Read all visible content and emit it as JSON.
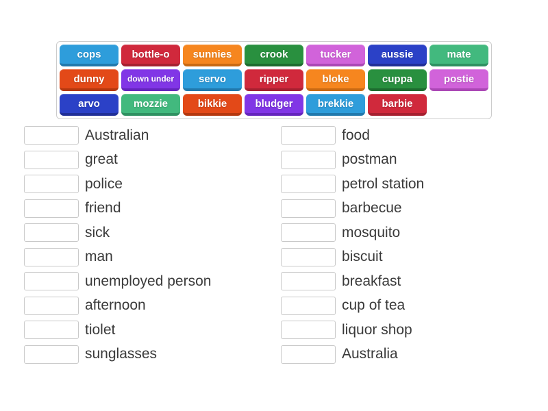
{
  "activity": {
    "type": "match-up",
    "theme": "Australian slang"
  },
  "palette": {
    "blue": {
      "fill": "#2e9ddb",
      "edge": "#2179ad"
    },
    "red": {
      "fill": "#d0293c",
      "edge": "#a62030"
    },
    "orange": {
      "fill": "#f6861f",
      "edge": "#c96a13"
    },
    "green": {
      "fill": "#29903f",
      "edge": "#1d6c2f"
    },
    "orchid": {
      "fill": "#d163da",
      "edge": "#ab47b5"
    },
    "royalblue": {
      "fill": "#2b41c7",
      "edge": "#202f97"
    },
    "seagreen": {
      "fill": "#42b97e",
      "edge": "#2f9161"
    },
    "orangered": {
      "fill": "#e34918",
      "edge": "#b5380f"
    },
    "purple": {
      "fill": "#8136e6",
      "edge": "#6525bd"
    }
  },
  "tray": {
    "rows": [
      {
        "tiles": [
          {
            "label": "cops",
            "color": "blue"
          },
          {
            "label": "bottle-o",
            "color": "red"
          },
          {
            "label": "sunnies",
            "color": "orange"
          },
          {
            "label": "crook",
            "color": "green"
          },
          {
            "label": "tucker",
            "color": "orchid"
          },
          {
            "label": "aussie",
            "color": "royalblue"
          },
          {
            "label": "mate",
            "color": "seagreen"
          }
        ]
      },
      {
        "tiles": [
          {
            "label": "dunny",
            "color": "orangered"
          },
          {
            "label": "down under",
            "color": "purple"
          },
          {
            "label": "servo",
            "color": "blue"
          },
          {
            "label": "ripper",
            "color": "red"
          },
          {
            "label": "bloke",
            "color": "orange"
          },
          {
            "label": "cuppa",
            "color": "green"
          },
          {
            "label": "postie",
            "color": "orchid"
          }
        ]
      },
      {
        "tiles": [
          {
            "label": "arvo",
            "color": "royalblue"
          },
          {
            "label": "mozzie",
            "color": "seagreen"
          },
          {
            "label": "bikkie",
            "color": "orangered"
          },
          {
            "label": "bludger",
            "color": "purple"
          },
          {
            "label": "brekkie",
            "color": "blue"
          },
          {
            "label": "barbie",
            "color": "red"
          }
        ]
      }
    ]
  },
  "match": {
    "left": [
      "Australian",
      "great",
      "police",
      "friend",
      "sick",
      "man",
      "unemployed person",
      "afternoon",
      "tiolet",
      "sunglasses"
    ],
    "right": [
      "food",
      "postman",
      "petrol station",
      "barbecue",
      "mosquito",
      "biscuit",
      "breakfast",
      "cup of tea",
      "liquor shop",
      "Australia"
    ]
  },
  "colors": {
    "page_background": "#ffffff",
    "definition_text": "#3a3a3a",
    "slot_border": "#c9c9c9",
    "tray_border": "#cccccc"
  }
}
